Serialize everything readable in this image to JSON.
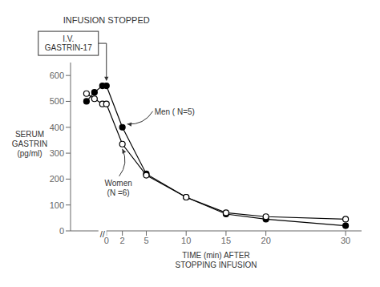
{
  "chart_data": {
    "type": "line",
    "x_label": "TIME (min) AFTER\nSTOPPING INFUSION",
    "y_label": "SERUM\nGASTRIN\n(pg/ml)",
    "xlim": [
      -4.5,
      32
    ],
    "xticks": [
      0,
      2,
      5,
      10,
      15,
      20,
      30
    ],
    "ylim": [
      0,
      650
    ],
    "yticks": [
      0,
      100,
      200,
      300,
      400,
      500,
      600
    ],
    "grid": false,
    "series": [
      {
        "x": [
          -2.5,
          -1.5,
          -0.5
        ],
        "values": [
          500,
          535,
          560
        ],
        "color": "#000000",
        "marker": "filled"
      },
      {
        "x": [
          -2.5,
          -1.5,
          -0.5
        ],
        "values": [
          530,
          510,
          490
        ],
        "color": "#000000",
        "marker": "open"
      },
      {
        "name": "Men ( N=5)",
        "x": [
          0,
          2,
          5,
          10,
          15,
          20,
          30
        ],
        "values": [
          560,
          400,
          220,
          130,
          65,
          45,
          20
        ],
        "color": "#000000",
        "marker": "filled"
      },
      {
        "name": "Women\n(N =6)",
        "x": [
          0,
          2,
          5,
          10,
          15,
          20,
          30
        ],
        "values": [
          490,
          335,
          215,
          130,
          70,
          55,
          45
        ],
        "color": "#000000",
        "marker": "open"
      }
    ],
    "annotations": [
      "INFUSION STOPPED",
      "I.V.\nGASTRIN-17",
      "//"
    ]
  }
}
